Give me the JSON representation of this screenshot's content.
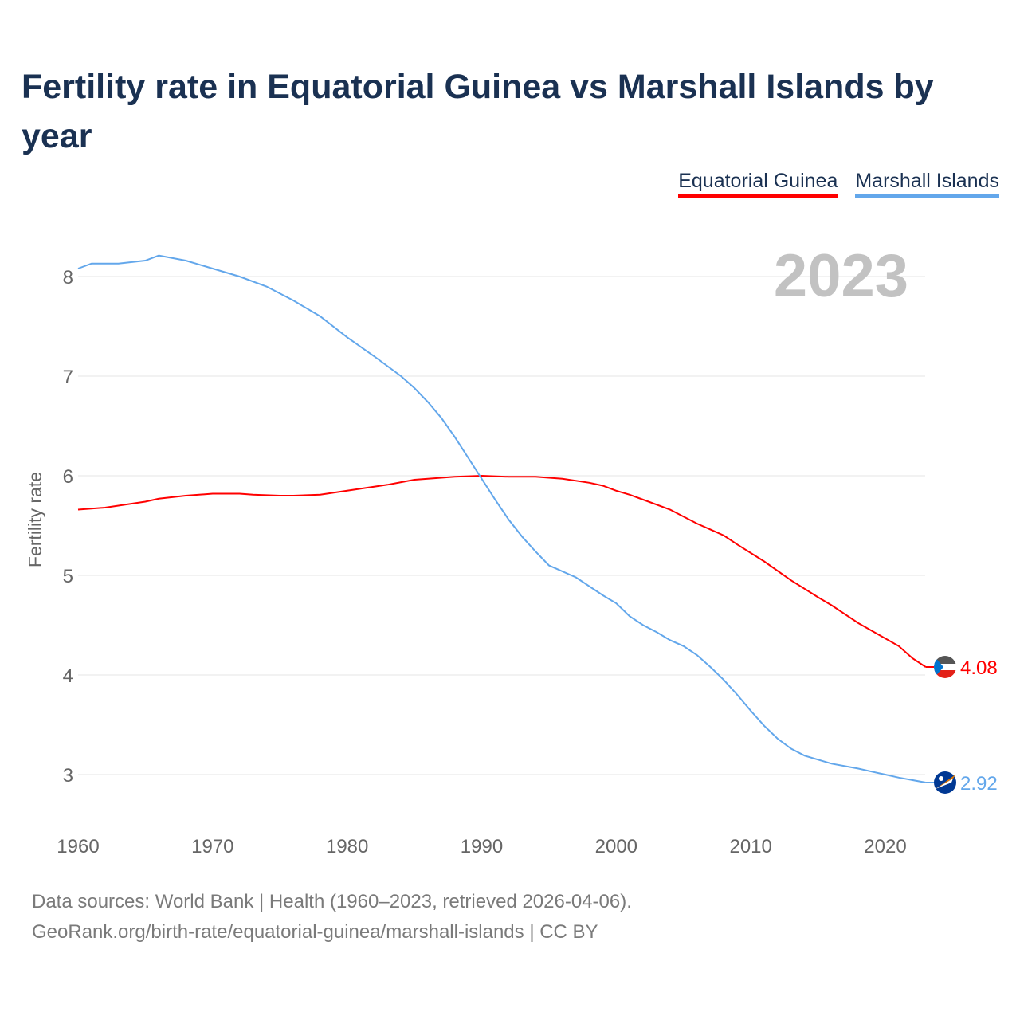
{
  "title": "Fertility rate in Equatorial Guinea vs Marshall Islands by year",
  "footer": {
    "line1": "Data sources: World Bank | Health (1960–2023, retrieved 2026-04-06).",
    "line2": "GeoRank.org/birth-rate/equatorial-guinea/marshall-islands | CC BY"
  },
  "chart_data": {
    "type": "line",
    "title": "Fertility rate in Equatorial Guinea vs Marshall Islands by year",
    "xlabel": "",
    "ylabel": "Fertility rate",
    "year_label": "2023",
    "xlim": [
      1960,
      2023
    ],
    "ylim": [
      2.5,
      8.2
    ],
    "xticks": [
      "1960",
      "1970",
      "1980",
      "1990",
      "2000",
      "2010",
      "2020"
    ],
    "yticks": [
      "3",
      "4",
      "5",
      "6",
      "7",
      "8"
    ],
    "grid": true,
    "legend_position": "top-right",
    "series": [
      {
        "name": "Equatorial Guinea",
        "color": "#ff0000",
        "end_label": "4.08",
        "x": [
          1960,
          1962,
          1965,
          1966,
          1968,
          1970,
          1972,
          1973,
          1975,
          1976,
          1978,
          1980,
          1983,
          1985,
          1988,
          1990,
          1992,
          1994,
          1996,
          1998,
          1999,
          2000,
          2001,
          2002,
          2004,
          2006,
          2008,
          2009,
          2011,
          2013,
          2015,
          2016,
          2018,
          2021,
          2022,
          2023
        ],
        "y": [
          5.66,
          5.68,
          5.74,
          5.77,
          5.8,
          5.82,
          5.82,
          5.81,
          5.8,
          5.8,
          5.81,
          5.85,
          5.91,
          5.96,
          5.99,
          6.0,
          5.99,
          5.99,
          5.97,
          5.93,
          5.9,
          5.85,
          5.81,
          5.76,
          5.66,
          5.52,
          5.4,
          5.31,
          5.14,
          4.95,
          4.78,
          4.7,
          4.52,
          4.29,
          4.17,
          4.08
        ]
      },
      {
        "name": "Marshall Islands",
        "color": "#63a7eb",
        "end_label": "2.92",
        "x": [
          1960,
          1961,
          1963,
          1965,
          1966,
          1968,
          1970,
          1972,
          1974,
          1976,
          1978,
          1980,
          1982,
          1984,
          1985,
          1986,
          1987,
          1988,
          1989,
          1990,
          1991,
          1992,
          1993,
          1994,
          1995,
          1997,
          1999,
          2000,
          2001,
          2002,
          2003,
          2004,
          2005,
          2006,
          2007,
          2008,
          2009,
          2010,
          2011,
          2012,
          2013,
          2014,
          2016,
          2018,
          2019,
          2020,
          2021,
          2023
        ],
        "y": [
          8.08,
          8.13,
          8.13,
          8.16,
          8.21,
          8.16,
          8.08,
          8.0,
          7.9,
          7.76,
          7.6,
          7.39,
          7.2,
          7.0,
          6.88,
          6.74,
          6.58,
          6.39,
          6.18,
          5.97,
          5.76,
          5.56,
          5.39,
          5.24,
          5.1,
          4.98,
          4.8,
          4.72,
          4.59,
          4.5,
          4.43,
          4.35,
          4.29,
          4.2,
          4.08,
          3.95,
          3.8,
          3.64,
          3.49,
          3.36,
          3.26,
          3.19,
          3.11,
          3.06,
          3.03,
          3.0,
          2.97,
          2.92
        ]
      }
    ]
  }
}
